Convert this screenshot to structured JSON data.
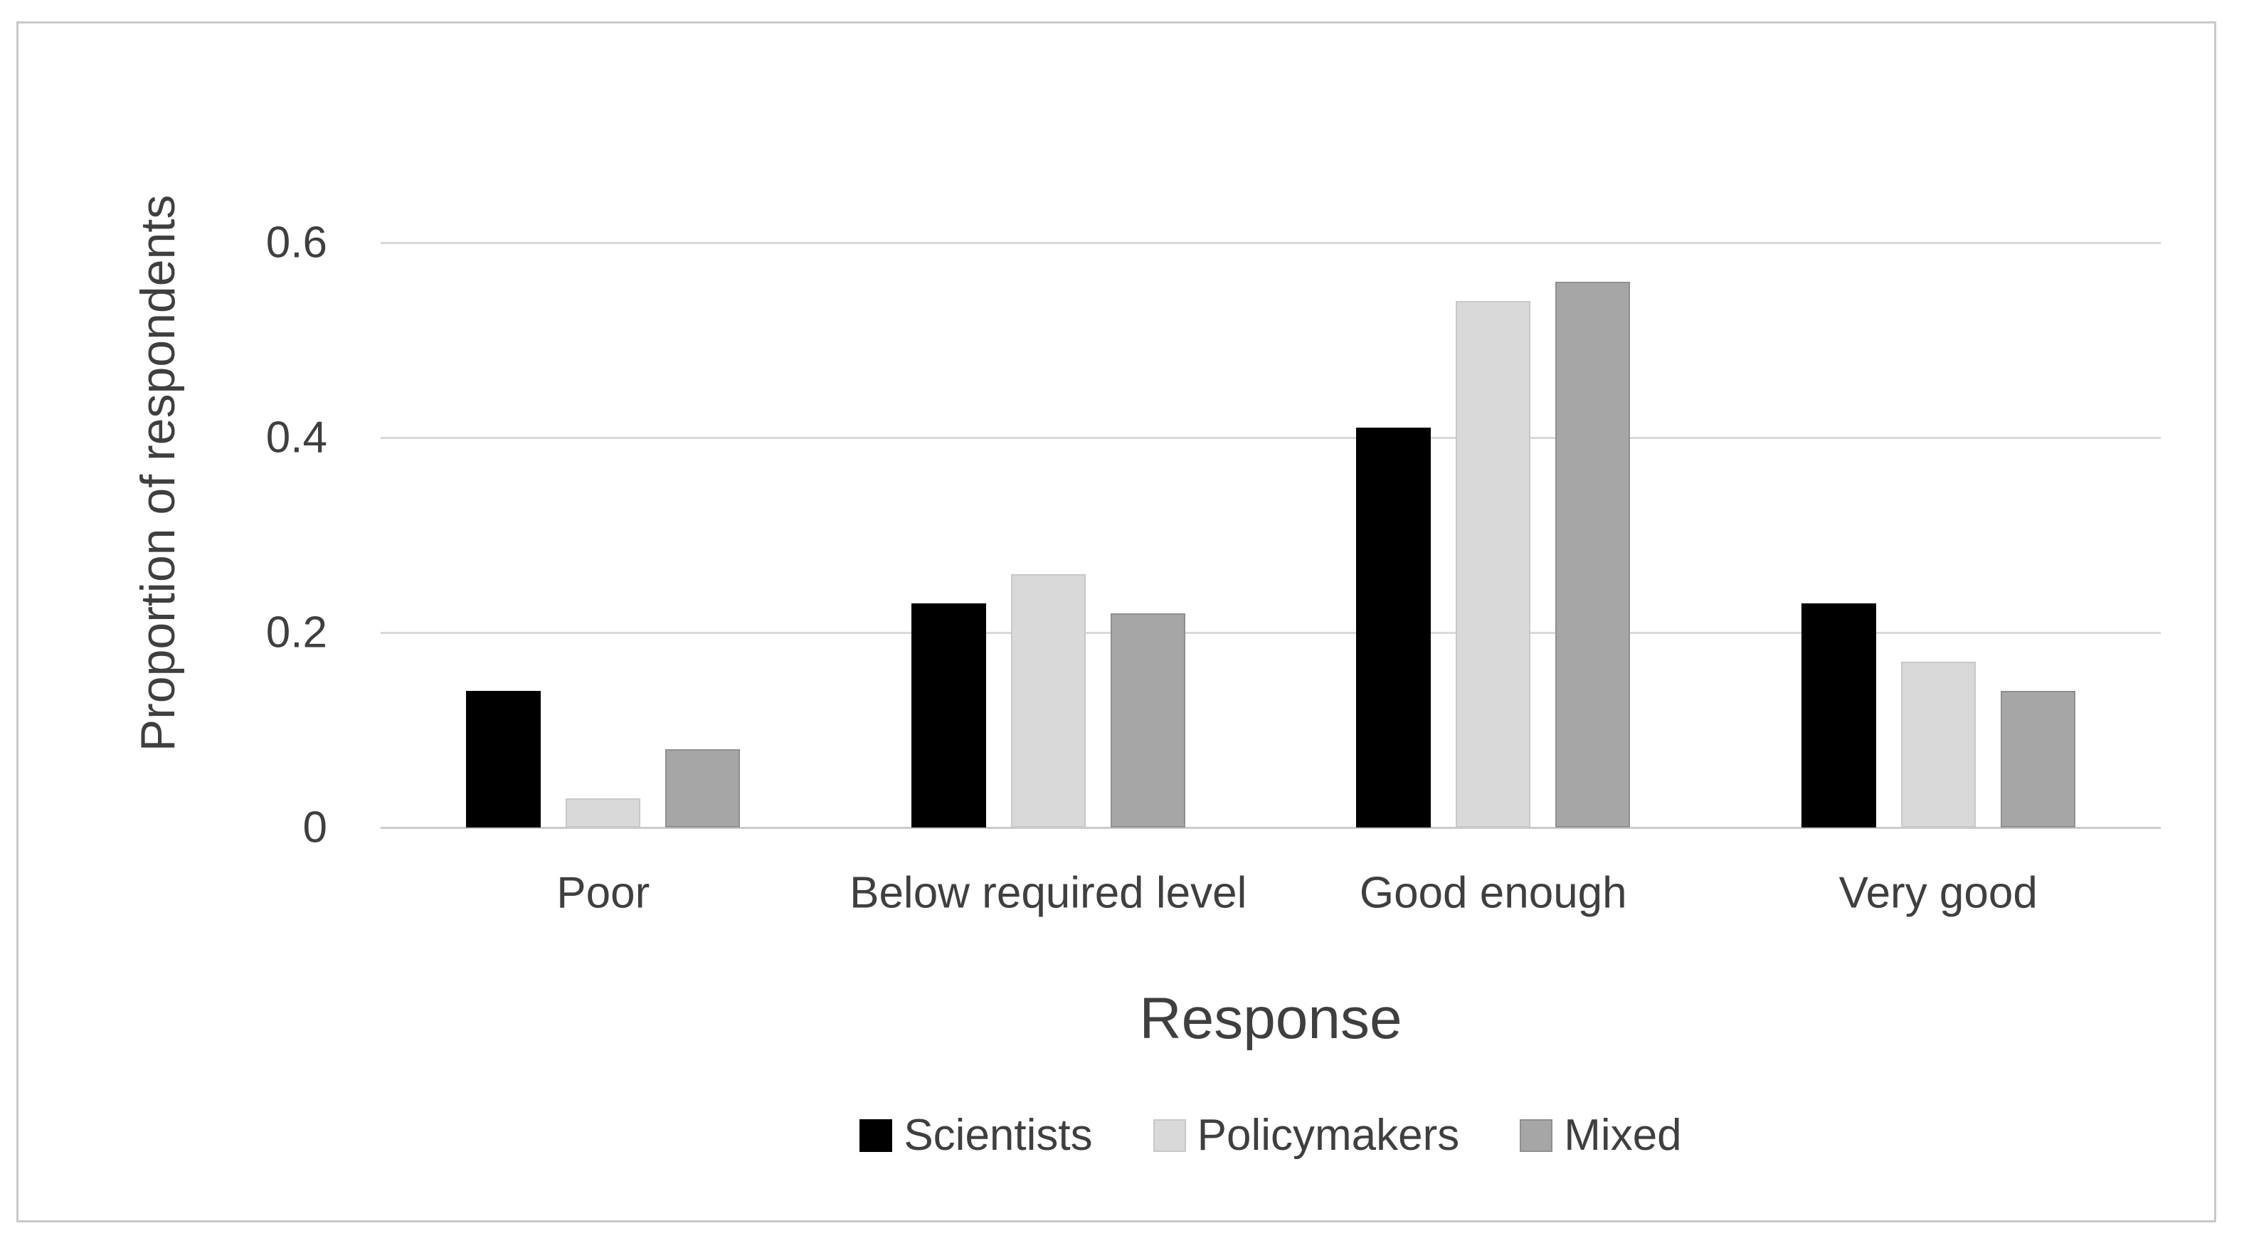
{
  "chart_data": {
    "type": "bar",
    "title": "",
    "categories": [
      "Poor",
      "Below required level",
      "Good enough",
      "Very good"
    ],
    "series": [
      {
        "name": "Scientists",
        "color": "#000000",
        "edge": "#000000",
        "values": [
          0.14,
          0.23,
          0.41,
          0.23
        ]
      },
      {
        "name": "Policymakers",
        "color": "#d9d9d9",
        "edge": "#c8c8c8",
        "values": [
          0.03,
          0.26,
          0.54,
          0.17
        ]
      },
      {
        "name": "Mixed",
        "color": "#a6a6a6",
        "edge": "#8f8f8f",
        "values": [
          0.08,
          0.22,
          0.56,
          0.14
        ]
      }
    ],
    "xlabel": "Response",
    "ylabel": "Proportion of respondents",
    "ylim": [
      0,
      0.6
    ],
    "yticks": [
      0,
      0.2,
      0.4,
      0.6
    ],
    "ytick_labels": [
      "0",
      "0.2",
      "0.4",
      "0.6"
    ],
    "grid": true,
    "legend_position": "bottom",
    "colors": {
      "text": "#3f3f3f",
      "gridline": "#d9d9d9",
      "axis_line": "#cbcbcb",
      "frame_border": "#c9c9c9",
      "background": "#ffffff"
    }
  }
}
